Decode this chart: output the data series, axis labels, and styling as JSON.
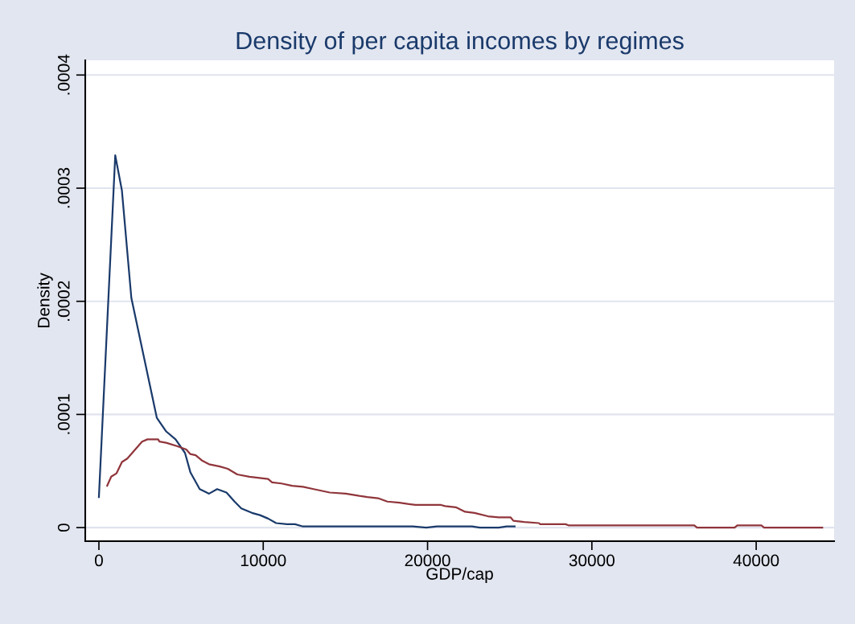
{
  "chart_data": {
    "type": "line",
    "title": "Density of per capita incomes by regimes",
    "xlabel": "GDP/cap",
    "ylabel": "Density",
    "xlim": [
      -830,
      44740
    ],
    "xticks": [
      0,
      10000,
      20000,
      30000,
      40000
    ],
    "ylim": [
      -1.2e-05,
      0.000413
    ],
    "yticks": [
      {
        "value": 0,
        "label": "0"
      },
      {
        "value": 0.0001,
        "label": ".0001"
      },
      {
        "value": 0.0002,
        "label": ".0002"
      },
      {
        "value": 0.0003,
        "label": ".0003"
      },
      {
        "value": 0.0004,
        "label": ".0004"
      }
    ],
    "grid": "y",
    "marker": "none",
    "line_style": "solid",
    "series": [
      {
        "color": "#1a3a6b",
        "x": [
          0,
          995,
          1400,
          1975,
          3525,
          4095,
          4665,
          5240,
          5565,
          6135,
          6705,
          7195,
          7765,
          8255,
          8665,
          9315,
          9805,
          10295,
          10785,
          11440,
          11930,
          12420,
          19100,
          19920,
          20570,
          22700,
          23185,
          24330,
          24815,
          25300
        ],
        "values": [
          2.7e-05,
          0.000329,
          0.000298,
          0.000203,
          9.7e-05,
          8.5e-05,
          7.8e-05,
          6.6e-05,
          4.9e-05,
          3.4e-05,
          3e-05,
          3.4e-05,
          3.1e-05,
          2.3e-05,
          1.7e-05,
          1.3e-05,
          1.1e-05,
          8e-06,
          4e-06,
          3e-06,
          3e-06,
          1e-06,
          1e-06,
          0,
          1e-06,
          1e-06,
          0,
          0,
          1e-06,
          1e-06
        ]
      },
      {
        "color": "#90353b",
        "x": [
          505,
          750,
          1075,
          1405,
          1730,
          2625,
          2950,
          3605,
          3685,
          4095,
          4750,
          5320,
          5565,
          5890,
          6300,
          6705,
          7360,
          7845,
          8420,
          9155,
          10295,
          10540,
          11110,
          11760,
          12420,
          13070,
          14050,
          15025,
          15845,
          16335,
          16985,
          17555,
          18290,
          19270,
          20820,
          21065,
          21720,
          22285,
          22860,
          23675,
          24330,
          25060,
          25225,
          25880,
          26775,
          26855,
          28400,
          28570,
          36235,
          36400,
          38685,
          38850,
          40315,
          40480,
          44020
        ],
        "values": [
          3.7e-05,
          4.5e-05,
          4.8e-05,
          5.8e-05,
          6.1e-05,
          7.6e-05,
          7.8e-05,
          7.8e-05,
          7.6e-05,
          7.5e-05,
          7.2e-05,
          6.9e-05,
          6.5e-05,
          6.4e-05,
          5.9e-05,
          5.6e-05,
          5.4e-05,
          5.2e-05,
          4.7e-05,
          4.5e-05,
          4.3e-05,
          4e-05,
          3.9e-05,
          3.7e-05,
          3.6e-05,
          3.4e-05,
          3.1e-05,
          3e-05,
          2.8e-05,
          2.7e-05,
          2.6e-05,
          2.3e-05,
          2.2e-05,
          2e-05,
          2e-05,
          1.9e-05,
          1.8e-05,
          1.4e-05,
          1.3e-05,
          1e-05,
          9e-06,
          9e-06,
          6e-06,
          5e-06,
          4e-06,
          3e-06,
          3e-06,
          2e-06,
          2e-06,
          0,
          0,
          2e-06,
          2e-06,
          0,
          0
        ]
      }
    ]
  }
}
